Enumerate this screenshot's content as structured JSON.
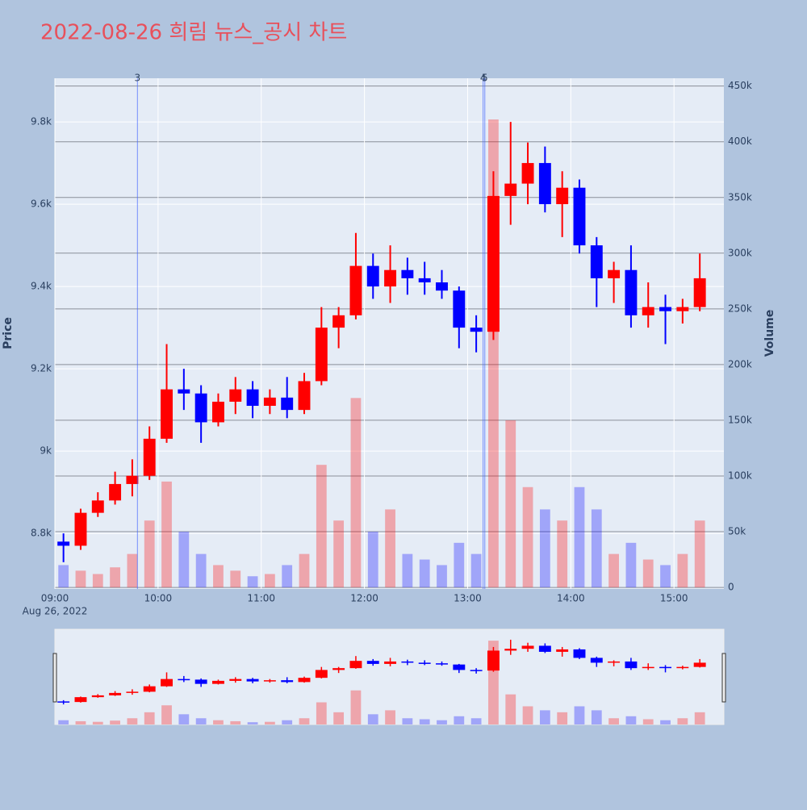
{
  "chart_data": {
    "type": "candlestick",
    "title": "2022-08-26 희림 뉴스_공시 차트",
    "y_title": "Price",
    "y2_title": "Volume",
    "x": [
      "09:00",
      "09:10",
      "09:20",
      "09:30",
      "09:40",
      "09:50",
      "10:00",
      "10:10",
      "10:20",
      "10:30",
      "10:40",
      "10:50",
      "11:00",
      "11:10",
      "11:20",
      "11:30",
      "11:40",
      "11:50",
      "12:00",
      "12:10",
      "12:20",
      "12:30",
      "12:40",
      "12:50",
      "13:00",
      "13:10",
      "13:20",
      "13:30",
      "13:40",
      "13:50",
      "14:00",
      "14:10",
      "14:20",
      "14:30",
      "14:40",
      "14:50",
      "15:00",
      "15:10"
    ],
    "open": [
      8780,
      8770,
      8850,
      8880,
      8920,
      8940,
      9030,
      9150,
      9140,
      9070,
      9120,
      9150,
      9110,
      9130,
      9100,
      9170,
      9300,
      9330,
      9450,
      9400,
      9440,
      9420,
      9410,
      9390,
      9300,
      9290,
      9620,
      9650,
      9700,
      9600,
      9640,
      9500,
      9420,
      9440,
      9330,
      9350,
      9340,
      9350
    ],
    "high": [
      8800,
      8860,
      8900,
      8950,
      8980,
      9060,
      9260,
      9200,
      9160,
      9140,
      9180,
      9170,
      9150,
      9180,
      9190,
      9350,
      9350,
      9530,
      9480,
      9500,
      9470,
      9460,
      9440,
      9400,
      9330,
      9680,
      9800,
      9750,
      9740,
      9680,
      9660,
      9520,
      9460,
      9500,
      9410,
      9380,
      9370,
      9480
    ],
    "low": [
      8730,
      8760,
      8840,
      8870,
      8890,
      8930,
      9020,
      9100,
      9020,
      9060,
      9090,
      9080,
      9090,
      9080,
      9090,
      9160,
      9250,
      9320,
      9370,
      9360,
      9380,
      9380,
      9370,
      9250,
      9240,
      9270,
      9550,
      9600,
      9580,
      9520,
      9480,
      9350,
      9360,
      9300,
      9300,
      9260,
      9310,
      9340
    ],
    "close": [
      8770,
      8850,
      8880,
      8920,
      8940,
      9030,
      9150,
      9140,
      9070,
      9120,
      9150,
      9110,
      9130,
      9100,
      9170,
      9300,
      9330,
      9450,
      9400,
      9440,
      9420,
      9410,
      9390,
      9300,
      9290,
      9620,
      9650,
      9700,
      9600,
      9640,
      9500,
      9420,
      9440,
      9330,
      9350,
      9340,
      9350,
      9420
    ],
    "volume": [
      20000,
      15000,
      12000,
      18000,
      30000,
      60000,
      95000,
      50000,
      30000,
      20000,
      15000,
      10000,
      12000,
      20000,
      30000,
      110000,
      60000,
      170000,
      50000,
      70000,
      30000,
      25000,
      20000,
      40000,
      30000,
      420000,
      150000,
      90000,
      70000,
      60000,
      90000,
      70000,
      30000,
      40000,
      25000,
      20000,
      30000,
      60000
    ],
    "increasing_color": "#ff0000",
    "decreasing_color": "#0000ff",
    "xlim": [
      "09:00",
      "15:29"
    ],
    "xticks": [
      "09:00",
      "10:00",
      "11:00",
      "12:00",
      "13:00",
      "14:00",
      "15:00"
    ],
    "date_label": "Aug 26, 2022",
    "ylim": [
      8665,
      9906
    ],
    "yticks": [
      {
        "value": 8800,
        "label": "8.8k"
      },
      {
        "value": 9000,
        "label": "9k"
      },
      {
        "value": 9200,
        "label": "9.2k"
      },
      {
        "value": 9400,
        "label": "9.4k"
      },
      {
        "value": 9600,
        "label": "9.6k"
      },
      {
        "value": 9800,
        "label": "9.8k"
      }
    ],
    "y2lim": [
      -1400,
      457000
    ],
    "y2ticks": [
      0,
      {
        "value": 50000,
        "label": "50k"
      },
      {
        "value": 100000,
        "label": "100k"
      },
      {
        "value": 150000,
        "label": "150k"
      },
      {
        "value": 200000,
        "label": "200k"
      },
      {
        "value": 250000,
        "label": "250k"
      },
      {
        "value": 300000,
        "label": "300k"
      },
      {
        "value": 350000,
        "label": "350k"
      },
      {
        "value": 400000,
        "label": "400k"
      },
      {
        "value": 450000,
        "label": "450k"
      }
    ],
    "annotations": [
      {
        "x": "09:48",
        "label": "3"
      },
      {
        "x": "13:09",
        "label": "4"
      },
      {
        "x": "13:10",
        "label": "5"
      }
    ],
    "rangeslider": true
  }
}
